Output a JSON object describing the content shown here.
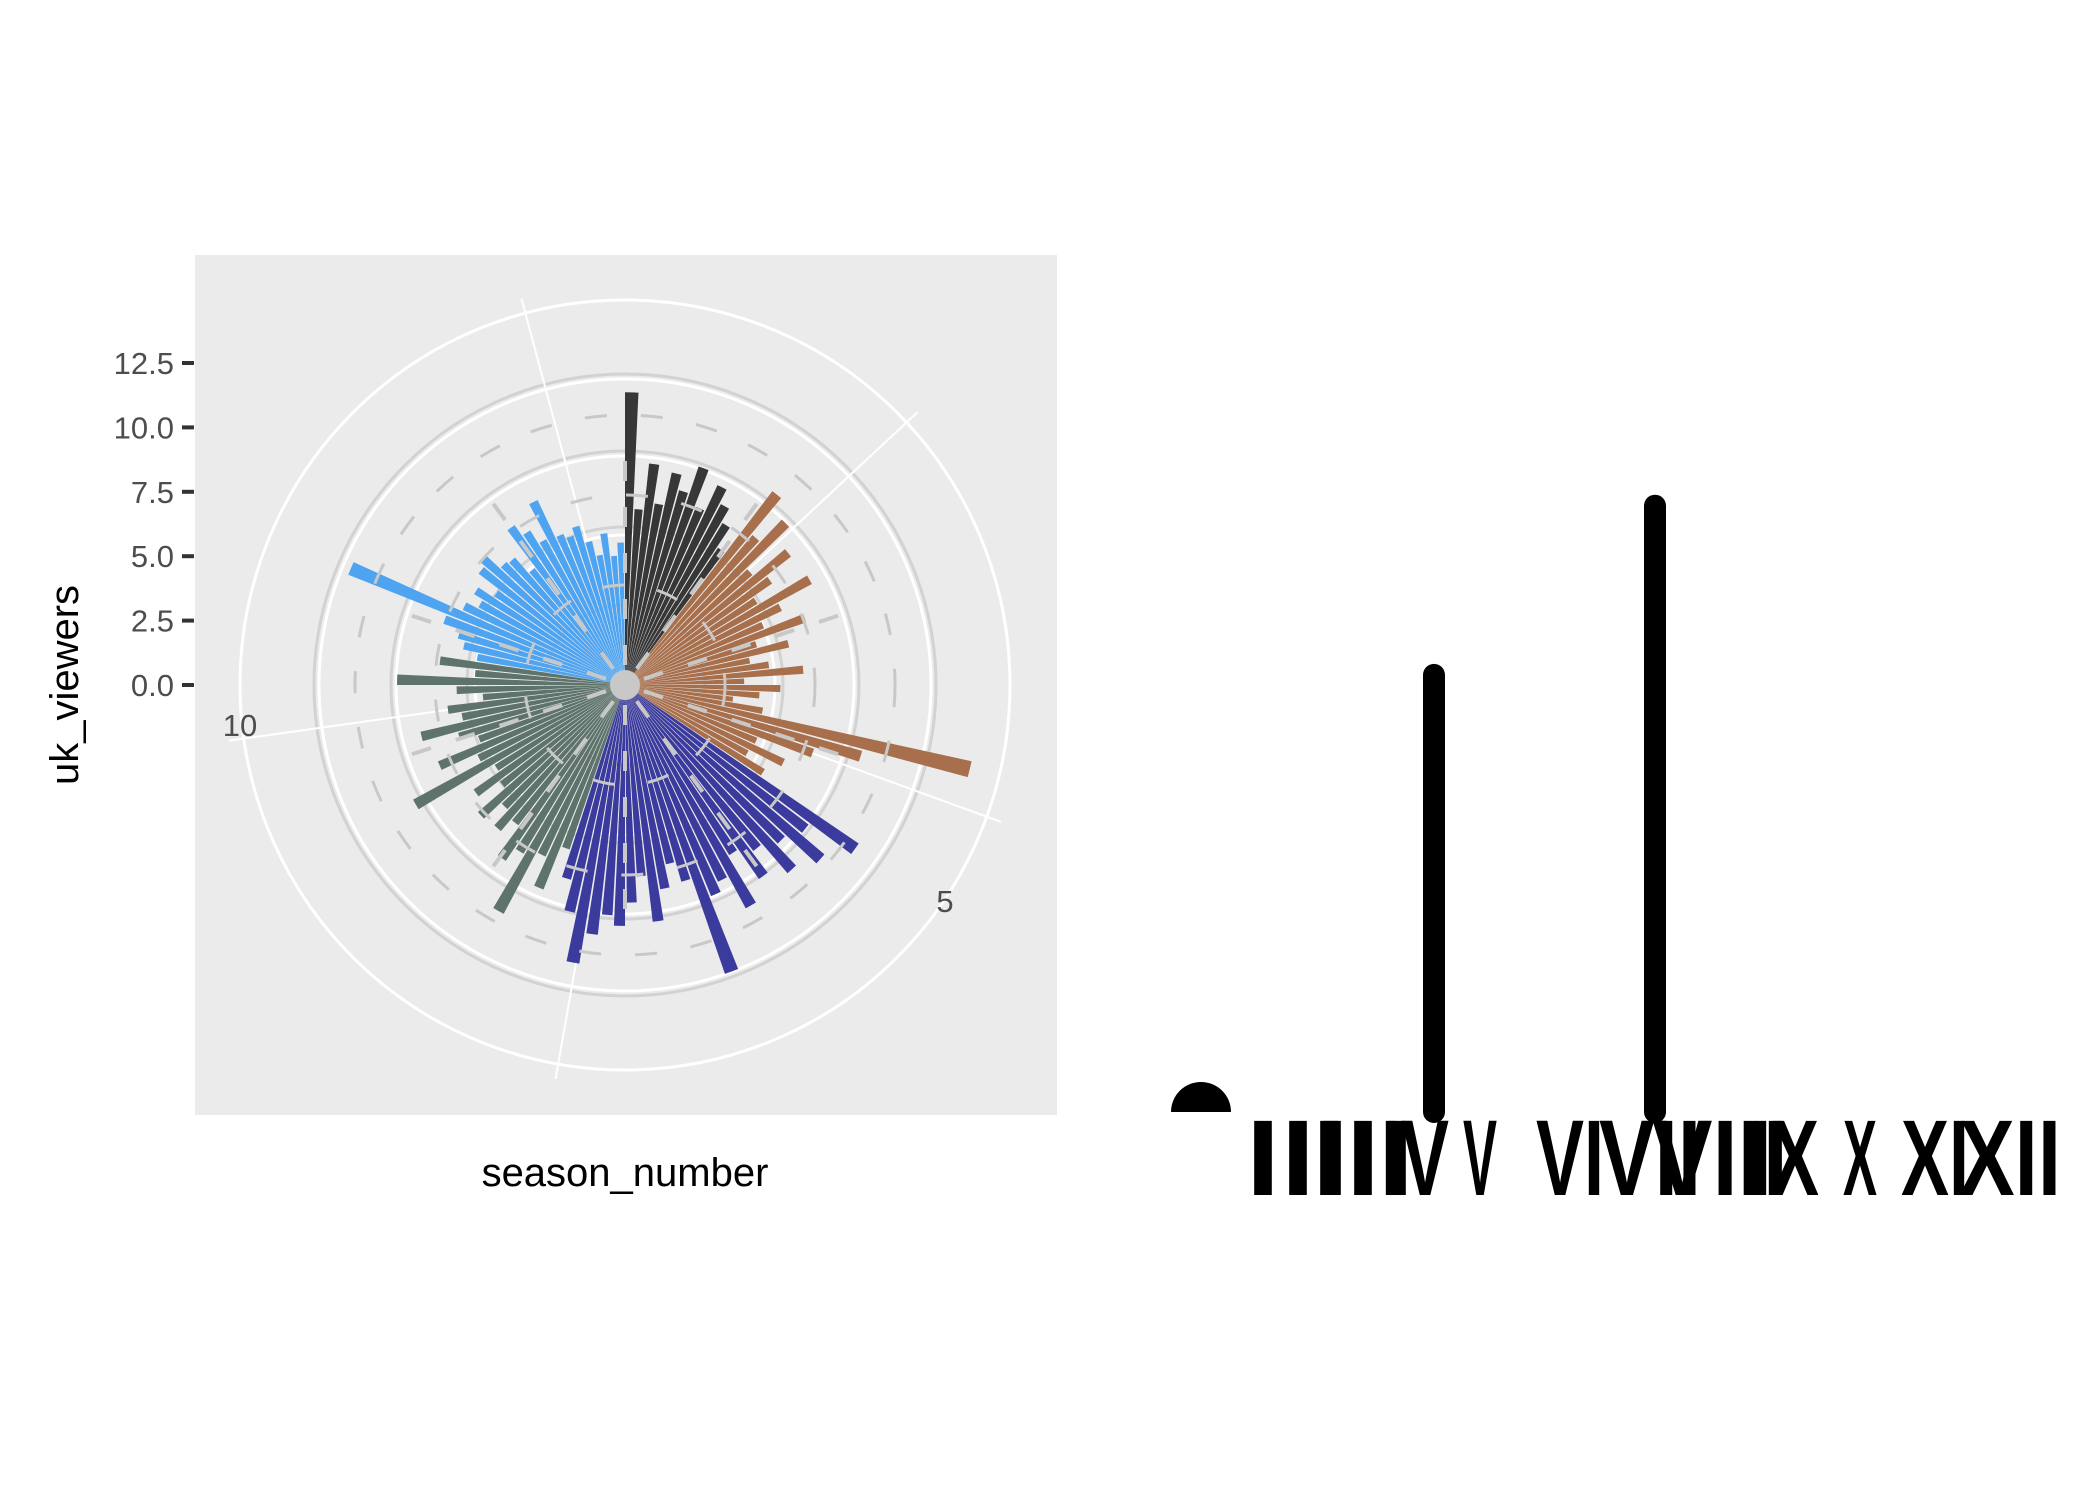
{
  "chart_data": [
    {
      "type": "bar",
      "coord": "polar",
      "xlabel": "season_number",
      "ylabel": "uk_viewers",
      "ylim": [
        0,
        12.5
      ],
      "y_ticks": [
        "0.0",
        "2.5",
        "5.0",
        "7.5",
        "10.0",
        "12.5"
      ],
      "angle_ticks": [
        "5",
        "10"
      ],
      "panel_background": "#ebebeb",
      "grid": true,
      "series": [
        {
          "color": "#373737",
          "values": [
            10.8,
            6.3,
            8.1,
            6.6,
            7.9,
            7.3,
            8.4,
            6.9,
            8.0,
            7.4,
            6.8,
            5.9
          ]
        },
        {
          "color": "#a86f4c",
          "values": [
            8.9,
            7.1,
            8.3,
            6.0,
            7.6,
            6.4,
            5.5,
            7.7,
            6.2,
            5.3,
            6.9,
            4.8,
            6.0,
            4.4,
            5.1,
            6.4,
            4.1,
            5.5,
            4.7,
            3.7,
            4.9,
            13.2,
            9.0,
            7.2,
            5.0,
            6.3,
            4.9,
            5.8
          ]
        },
        {
          "color": "#3a3b9c",
          "values": [
            10.4,
            8.4,
            9.6,
            8.0,
            9.1,
            7.6,
            8.6,
            7.2,
            9.3,
            7.9,
            8.3,
            11.3,
            7.4,
            6.6,
            7.5,
            8.7,
            6.9,
            7.9,
            8.8,
            8.4,
            9.2,
            10.4,
            8.5,
            7.3
          ]
        },
        {
          "color": "#5e736b",
          "values": [
            6.2,
            8.0,
            6.8,
            9.5,
            7.1,
            7.7,
            6.3,
            6.9,
            6.1,
            7.0,
            5.6,
            6.6,
            5.4,
            8.8,
            5.8,
            7.3,
            5.5,
            6.2,
            7.6,
            5.9,
            6.4,
            5.0,
            6.0,
            8.3,
            5.3,
            6.7
          ]
        },
        {
          "color": "#4ea4f0",
          "values": [
            5.3,
            5.9,
            6.2,
            6.9,
            11.0,
            6.4,
            5.9,
            6.3,
            5.6,
            6.6,
            6.8,
            6.1,
            6.0,
            5.2,
            7.0,
            6.5,
            5.9,
            7.4,
            5.8,
            5.6,
            5.9,
            5.2,
            4.6,
            5.4,
            4.5,
            5.0
          ]
        }
      ]
    },
    {
      "type": "lollipop",
      "categories": [
        "I",
        "II",
        "III",
        "IV",
        "V",
        "VI",
        "VII",
        "VIII",
        "IX",
        "X",
        "XI",
        "XII"
      ],
      "values": [
        0,
        0,
        0,
        0,
        0,
        0,
        0,
        0,
        0,
        0,
        0,
        0
      ],
      "peaks": [
        {
          "label": "Ⅴ",
          "value": 3.1
        },
        {
          "label": "Ⅷ",
          "value": 4.3
        }
      ],
      "ylim": [
        0,
        4.5
      ],
      "color": "#000000"
    }
  ]
}
